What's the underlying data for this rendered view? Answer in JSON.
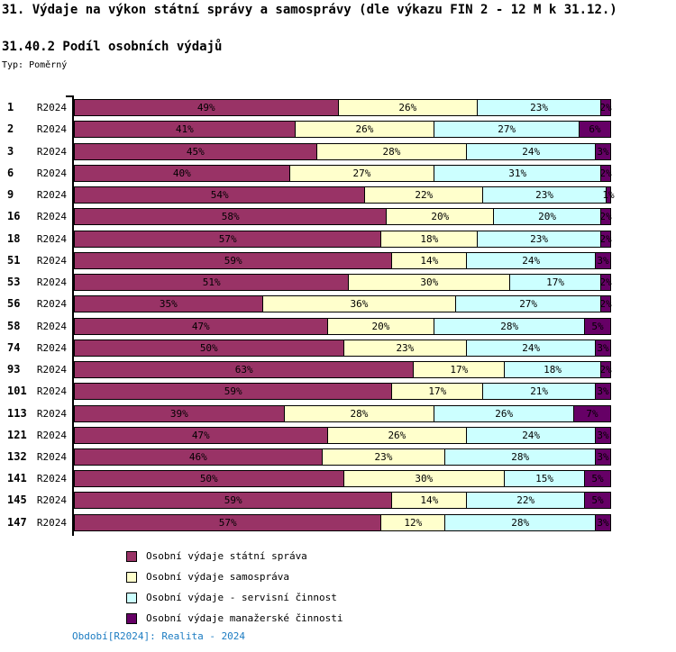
{
  "header": {
    "title": "31. Výdaje na výkon státní správy a samosprávy (dle výkazu FIN 2 - 12 M k 31.12.)",
    "subtitle": "31.40.2 Podíl osobních výdajů",
    "type_label": "Typ: Poměrný"
  },
  "footer": {
    "text": "Období[R2024]: Realita - 2024",
    "color": "#1c7cc2"
  },
  "chart_data": {
    "type": "bar",
    "orientation": "horizontal",
    "stacked": true,
    "unit": "%",
    "xlim": [
      0,
      100
    ],
    "grid": false,
    "legend_position": "bottom-left",
    "period_label": "R2024",
    "categories": [
      "1",
      "2",
      "3",
      "6",
      "9",
      "16",
      "18",
      "51",
      "53",
      "56",
      "58",
      "74",
      "93",
      "101",
      "113",
      "121",
      "132",
      "141",
      "145",
      "147"
    ],
    "series": [
      {
        "name": "Osobní výdaje státní správa",
        "color": "#993366",
        "values": [
          49,
          41,
          45,
          40,
          54,
          58,
          57,
          59,
          51,
          35,
          47,
          50,
          63,
          59,
          39,
          47,
          46,
          50,
          59,
          57
        ]
      },
      {
        "name": "Osobní výdaje samospráva",
        "color": "#FFFFCC",
        "values": [
          26,
          26,
          28,
          27,
          22,
          20,
          18,
          14,
          30,
          36,
          20,
          23,
          17,
          17,
          28,
          26,
          23,
          30,
          14,
          12
        ]
      },
      {
        "name": "Osobní výdaje - servisní činnost",
        "color": "#CCFFFF",
        "values": [
          23,
          27,
          24,
          31,
          23,
          20,
          23,
          24,
          17,
          27,
          28,
          24,
          18,
          21,
          26,
          24,
          28,
          15,
          22,
          28
        ]
      },
      {
        "name": "Osobní výdaje manažerské činnosti",
        "color": "#660066",
        "values": [
          2,
          6,
          3,
          2,
          1,
          2,
          2,
          3,
          2,
          2,
          5,
          3,
          2,
          3,
          7,
          3,
          3,
          5,
          5,
          3
        ]
      }
    ]
  }
}
